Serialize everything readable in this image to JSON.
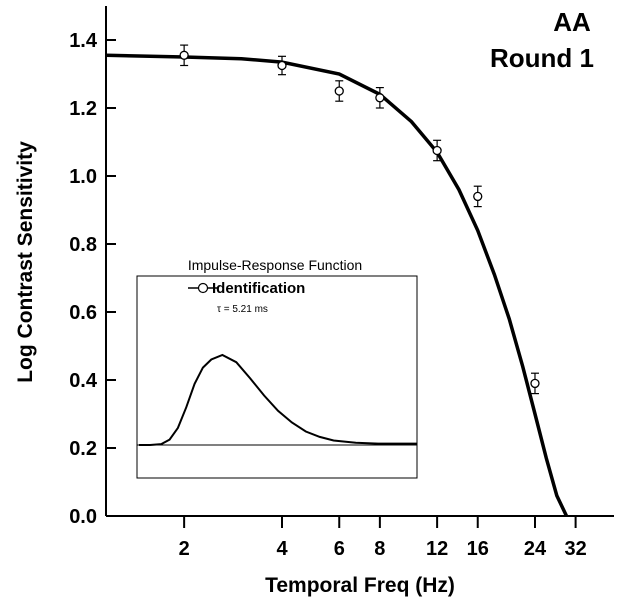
{
  "chart_data": [
    {
      "type": "line",
      "title": "",
      "annotation": {
        "line1": "AA",
        "line2": "Round 1"
      },
      "xlabel": "Temporal Freq (Hz)",
      "ylabel": "Log Contrast Sensitivity",
      "x_scale": "log",
      "xlim": [
        1.15,
        42
      ],
      "ylim": [
        0,
        1.5
      ],
      "x_ticks": [
        2,
        4,
        6,
        8,
        12,
        16,
        24,
        32
      ],
      "y_ticks": [
        0.0,
        0.2,
        0.4,
        0.6,
        0.8,
        1.0,
        1.2,
        1.4
      ],
      "y_tick_labels": [
        "0.0",
        "0.2",
        "0.4",
        "0.6",
        "0.8",
        "1.0",
        "1.2",
        "1.4"
      ],
      "grid": false,
      "series": [
        {
          "kind": "points_with_error_bars",
          "x": [
            2,
            4,
            6,
            8,
            12,
            16,
            24
          ],
          "y": [
            1.355,
            1.325,
            1.25,
            1.23,
            1.075,
            0.94,
            0.39
          ],
          "err": [
            0.03,
            0.027,
            0.03,
            0.03,
            0.03,
            0.03,
            0.03
          ]
        },
        {
          "kind": "fitted_curve",
          "x": [
            1.15,
            2,
            3,
            4,
            6,
            8,
            10,
            12,
            14,
            16,
            18,
            20,
            22,
            24,
            26,
            28,
            30
          ],
          "y": [
            1.355,
            1.35,
            1.345,
            1.335,
            1.3,
            1.24,
            1.16,
            1.07,
            0.96,
            0.84,
            0.71,
            0.58,
            0.44,
            0.3,
            0.17,
            0.06,
            0.0
          ]
        }
      ]
    },
    {
      "type": "line",
      "title": "Impulse-Response Function",
      "legend": "Identification",
      "parameter_text": "τ = 5.21 ms",
      "grid": false,
      "series": [
        {
          "kind": "impulse_response",
          "x": [
            0,
            0.04,
            0.08,
            0.11,
            0.14,
            0.17,
            0.2,
            0.23,
            0.26,
            0.3,
            0.35,
            0.4,
            0.45,
            0.5,
            0.55,
            0.6,
            0.65,
            0.7,
            0.78,
            0.86,
            1.0
          ],
          "y": [
            0.0,
            0.0,
            0.01,
            0.06,
            0.19,
            0.42,
            0.68,
            0.86,
            0.95,
            1.0,
            0.92,
            0.74,
            0.55,
            0.38,
            0.25,
            0.15,
            0.09,
            0.05,
            0.025,
            0.015,
            0.015
          ]
        }
      ]
    }
  ]
}
